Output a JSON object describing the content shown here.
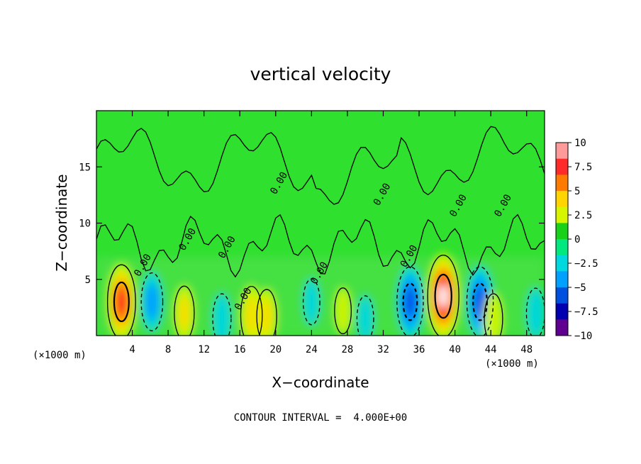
{
  "chart_data": {
    "type": "heatmap",
    "title": "vertical velocity",
    "xlabel": "X−coordinate",
    "ylabel": "Z−coordinate",
    "x_multiplier_left": "(×1000 m)",
    "x_multiplier_right": "(×1000 m)",
    "xlim": [
      0,
      50
    ],
    "ylim": [
      0,
      20
    ],
    "x_ticks": [
      "4",
      "8",
      "12",
      "16",
      "20",
      "24",
      "28",
      "32",
      "36",
      "40",
      "44",
      "48"
    ],
    "y_ticks": [
      "5",
      "10",
      "15"
    ],
    "colorbar": {
      "ticks": [
        "10",
        "7.5",
        "5",
        "2.5",
        "0",
        "−2.5",
        "−5",
        "−7.5",
        "−10"
      ],
      "levels": [
        10,
        7.5,
        5,
        2.5,
        0,
        -2.5,
        -5,
        -7.5,
        -10
      ],
      "colors": [
        "#ff9a9a",
        "#ff2a2a",
        "#ff7a00",
        "#ffd400",
        "#d8f500",
        "#18d118",
        "#00e87e",
        "#00d8e0",
        "#00a0ff",
        "#0050e0",
        "#0000b0",
        "#600090"
      ]
    },
    "contour_label": "0.00",
    "contour_interval": "CONTOUR INTERVAL =  4.000E+00",
    "features": [
      {
        "x": 2.8,
        "z": 3.0,
        "w": 9
      },
      {
        "x": 6.2,
        "z": 3.0,
        "w": -5
      },
      {
        "x": 9.8,
        "z": 2.0,
        "w": 4
      },
      {
        "x": 14.0,
        "z": 1.5,
        "w": -3
      },
      {
        "x": 17.3,
        "z": 1.8,
        "w": 5
      },
      {
        "x": 19.0,
        "z": 1.7,
        "w": 4
      },
      {
        "x": 24.0,
        "z": 3.0,
        "w": -2
      },
      {
        "x": 27.5,
        "z": 2.2,
        "w": 2
      },
      {
        "x": 30.0,
        "z": 1.5,
        "w": -2
      },
      {
        "x": 35.0,
        "z": 3.0,
        "w": -8
      },
      {
        "x": 38.7,
        "z": 3.5,
        "w": 11
      },
      {
        "x": 42.8,
        "z": 3.0,
        "w": -8
      },
      {
        "x": 44.3,
        "z": 1.5,
        "w": 3
      },
      {
        "x": 49.0,
        "z": 2.0,
        "w": -3
      }
    ]
  }
}
